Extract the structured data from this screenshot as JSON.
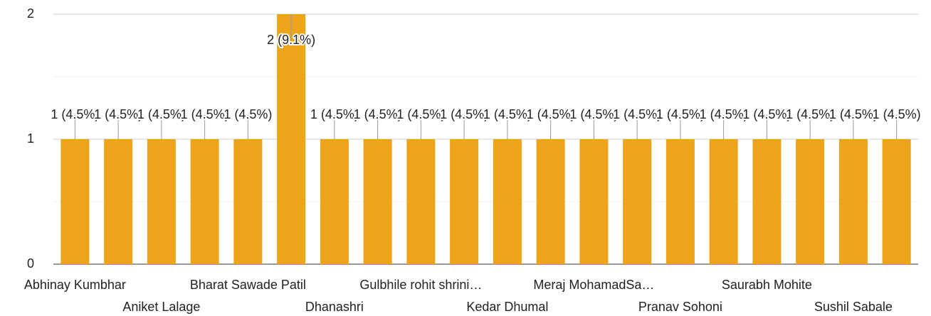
{
  "chart_data": {
    "type": "bar",
    "categories": [
      "Abhinay Kumbhar",
      null,
      "Aniket Lalage",
      null,
      "Bharat Sawade Patil",
      null,
      "Dhanashri",
      null,
      "Gulbhile rohit shrini…",
      null,
      "Kedar Dhumal",
      null,
      "Meraj MohamadSa…",
      null,
      "Pranav Sohoni",
      null,
      "Saurabh Mohite",
      null,
      "Sushil Sabale",
      null
    ],
    "values": [
      1,
      1,
      1,
      1,
      1,
      2,
      1,
      1,
      1,
      1,
      1,
      1,
      1,
      1,
      1,
      1,
      1,
      1,
      1,
      1
    ],
    "value_labels": [
      "1 (4.5%)",
      "1 (4.5%)",
      "1 (4.5%)",
      "1 (4.5%)",
      "1 (4.5%)",
      "2 (9.1%)",
      "1 (4.5%)",
      "1 (4.5%)",
      "1 (4.5%)",
      "1 (4.5%)",
      "1 (4.5%)",
      "1 (4.5%)",
      "1 (4.5%)",
      "1 (4.5%)",
      "1 (4.5%)",
      "1 (4.5%)",
      "1 (4.5%)",
      "1 (4.5%)",
      "1 (4.5%)",
      "1 (4.5%)"
    ],
    "color": "#eda31a",
    "ylim": [
      0,
      2
    ],
    "yticks": [
      0,
      1,
      2
    ],
    "minor_yticks": [
      0.5,
      1.5
    ],
    "grid": true
  }
}
